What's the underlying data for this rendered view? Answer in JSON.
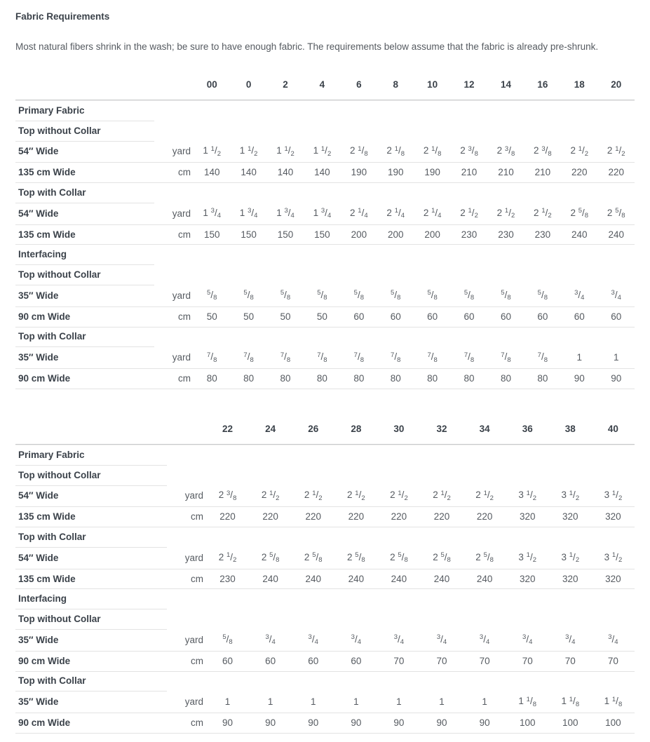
{
  "page": {
    "title": "Fabric Requirements",
    "intro": "Most natural fibers shrink in the wash; be sure to have enough fabric. The requirements below assume that the fabric is already pre-shrunk."
  },
  "colors": {
    "heading_text": "#3b424a",
    "body_text": "#565b61",
    "header_rule": "#c9cacb",
    "row_rule": "#e3e3e3"
  },
  "tables": [
    {
      "sizes": [
        "00",
        "0",
        "2",
        "4",
        "6",
        "8",
        "10",
        "12",
        "14",
        "16",
        "18",
        "20"
      ],
      "rows": [
        {
          "type": "section",
          "label": "Primary Fabric"
        },
        {
          "type": "section",
          "label": "Top without Collar"
        },
        {
          "type": "data",
          "label": "54″ Wide",
          "unit": "yard",
          "values": [
            "1 1/2",
            "1 1/2",
            "1 1/2",
            "1 1/2",
            "2 1/8",
            "2 1/8",
            "2 1/8",
            "2 3/8",
            "2 3/8",
            "2 3/8",
            "2 1/2",
            "2 1/2"
          ]
        },
        {
          "type": "data",
          "label": "135 cm Wide",
          "unit": "cm",
          "values": [
            "140",
            "140",
            "140",
            "140",
            "190",
            "190",
            "190",
            "210",
            "210",
            "210",
            "220",
            "220"
          ]
        },
        {
          "type": "section",
          "label": "Top with Collar"
        },
        {
          "type": "data",
          "label": "54″ Wide",
          "unit": "yard",
          "values": [
            "1 3/4",
            "1 3/4",
            "1 3/4",
            "1 3/4",
            "2 1/4",
            "2 1/4",
            "2 1/4",
            "2 1/2",
            "2 1/2",
            "2 1/2",
            "2 5/8",
            "2 5/8"
          ]
        },
        {
          "type": "data",
          "label": "135 cm Wide",
          "unit": "cm",
          "values": [
            "150",
            "150",
            "150",
            "150",
            "200",
            "200",
            "200",
            "230",
            "230",
            "230",
            "240",
            "240"
          ]
        },
        {
          "type": "section",
          "label": "Interfacing"
        },
        {
          "type": "section",
          "label": "Top without Collar"
        },
        {
          "type": "data",
          "label": "35″ Wide",
          "unit": "yard",
          "values": [
            "5/8",
            "5/8",
            "5/8",
            "5/8",
            "5/8",
            "5/8",
            "5/8",
            "5/8",
            "5/8",
            "5/8",
            "3/4",
            "3/4"
          ]
        },
        {
          "type": "data",
          "label": "90 cm Wide",
          "unit": "cm",
          "values": [
            "50",
            "50",
            "50",
            "50",
            "60",
            "60",
            "60",
            "60",
            "60",
            "60",
            "60",
            "60"
          ]
        },
        {
          "type": "section",
          "label": "Top with Collar"
        },
        {
          "type": "data",
          "label": "35″ Wide",
          "unit": "yard",
          "values": [
            "7/8",
            "7/8",
            "7/8",
            "7/8",
            "7/8",
            "7/8",
            "7/8",
            "7/8",
            "7/8",
            "7/8",
            "1",
            "1"
          ]
        },
        {
          "type": "data",
          "label": "90 cm Wide",
          "unit": "cm",
          "values": [
            "80",
            "80",
            "80",
            "80",
            "80",
            "80",
            "80",
            "80",
            "80",
            "80",
            "90",
            "90"
          ]
        }
      ]
    },
    {
      "sizes": [
        "22",
        "24",
        "26",
        "28",
        "30",
        "32",
        "34",
        "36",
        "38",
        "40"
      ],
      "rows": [
        {
          "type": "section",
          "label": "Primary Fabric"
        },
        {
          "type": "section",
          "label": "Top without Collar"
        },
        {
          "type": "data",
          "label": "54″ Wide",
          "unit": "yard",
          "values": [
            "2 3/8",
            "2 1/2",
            "2 1/2",
            "2 1/2",
            "2 1/2",
            "2 1/2",
            "2 1/2",
            "3 1/2",
            "3 1/2",
            "3 1/2"
          ]
        },
        {
          "type": "data",
          "label": "135 cm Wide",
          "unit": "cm",
          "values": [
            "220",
            "220",
            "220",
            "220",
            "220",
            "220",
            "220",
            "320",
            "320",
            "320"
          ]
        },
        {
          "type": "section",
          "label": "Top with Collar"
        },
        {
          "type": "data",
          "label": "54″ Wide",
          "unit": "yard",
          "values": [
            "2 1/2",
            "2 5/8",
            "2 5/8",
            "2 5/8",
            "2 5/8",
            "2 5/8",
            "2 5/8",
            "3 1/2",
            "3 1/2",
            "3 1/2"
          ]
        },
        {
          "type": "data",
          "label": "135 cm Wide",
          "unit": "cm",
          "values": [
            "230",
            "240",
            "240",
            "240",
            "240",
            "240",
            "240",
            "320",
            "320",
            "320"
          ]
        },
        {
          "type": "section",
          "label": "Interfacing"
        },
        {
          "type": "section",
          "label": "Top without Collar"
        },
        {
          "type": "data",
          "label": "35″ Wide",
          "unit": "yard",
          "values": [
            "5/8",
            "3/4",
            "3/4",
            "3/4",
            "3/4",
            "3/4",
            "3/4",
            "3/4",
            "3/4",
            "3/4"
          ]
        },
        {
          "type": "data",
          "label": "90 cm Wide",
          "unit": "cm",
          "values": [
            "60",
            "60",
            "60",
            "60",
            "70",
            "70",
            "70",
            "70",
            "70",
            "70"
          ]
        },
        {
          "type": "section",
          "label": "Top with Collar"
        },
        {
          "type": "data",
          "label": "35″ Wide",
          "unit": "yard",
          "values": [
            "1",
            "1",
            "1",
            "1",
            "1",
            "1",
            "1",
            "1 1/8",
            "1 1/8",
            "1 1/8"
          ]
        },
        {
          "type": "data",
          "label": "90 cm Wide",
          "unit": "cm",
          "values": [
            "90",
            "90",
            "90",
            "90",
            "90",
            "90",
            "90",
            "100",
            "100",
            "100"
          ]
        }
      ]
    }
  ]
}
